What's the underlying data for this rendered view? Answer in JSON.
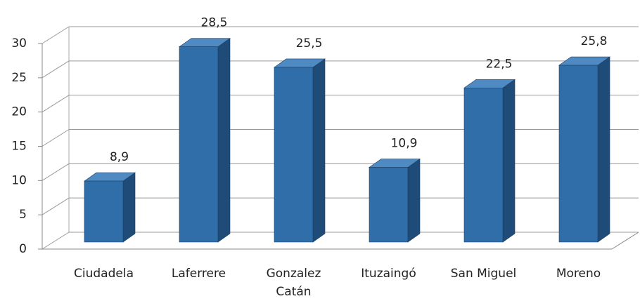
{
  "chart_data": {
    "type": "bar3d",
    "categories": [
      "Ciudadela",
      "Laferrere",
      "Gonzalez Catán",
      "Ituzaingó",
      "San Miguel",
      "Moreno"
    ],
    "values": [
      8.9,
      28.5,
      25.5,
      10.9,
      22.5,
      25.8
    ],
    "value_labels": [
      "8,9",
      "28,5",
      "25,5",
      "10,9",
      "22,5",
      "25,8"
    ],
    "color": "#2f6ea8",
    "ylim": [
      0,
      30
    ],
    "yticks": [
      0,
      5,
      10,
      15,
      20,
      25,
      30
    ],
    "grid": true
  }
}
